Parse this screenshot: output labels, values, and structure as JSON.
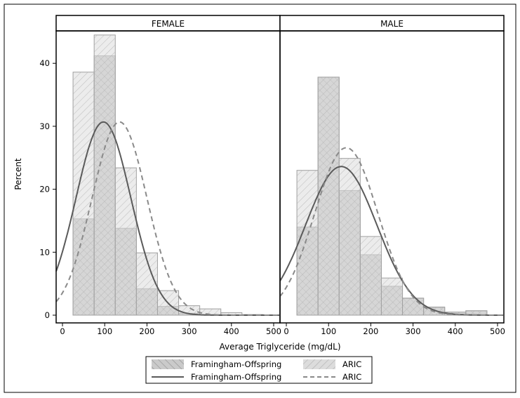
{
  "chart_data": {
    "type": "bar",
    "subtype": "histogram-with-normal-density",
    "xlabel": "Average Triglyceride (mg/dL)",
    "ylabel": "Percent",
    "xlim": [
      -15,
      515
    ],
    "ylim": [
      0,
      46
    ],
    "xticks": [
      0,
      100,
      200,
      300,
      400,
      500
    ],
    "yticks": [
      0,
      10,
      20,
      30,
      40
    ],
    "bin_width": 50,
    "bin_midpoints": [
      50,
      100,
      150,
      200,
      250,
      300,
      350,
      400,
      450
    ],
    "legend": {
      "placement": "bottom",
      "entries": [
        {
          "label": "Framingham-Offspring",
          "kind": "histogram"
        },
        {
          "label": "ARIC",
          "kind": "histogram"
        },
        {
          "label": "Framingham-Offspring",
          "kind": "solid-line"
        },
        {
          "label": "ARIC",
          "kind": "dashed-line"
        }
      ]
    },
    "panels": [
      {
        "title": "FEMALE",
        "series": [
          {
            "name": "Framingham-Offspring",
            "values": [
              15.3,
              41.2,
              13.8,
              4.2,
              1.4,
              0.3,
              0.1,
              0.0,
              0.0
            ],
            "normal": {
              "mean": 97,
              "sd": 65
            }
          },
          {
            "name": "ARIC",
            "values": [
              38.6,
              44.5,
              23.4,
              9.9,
              3.9,
              1.5,
              1.0,
              0.4,
              0.1
            ],
            "normal": {
              "mean": 135,
              "sd": 65
            }
          }
        ]
      },
      {
        "title": "MALE",
        "series": [
          {
            "name": "Framingham-Offspring",
            "values": [
              14.0,
              37.8,
              19.8,
              9.6,
              4.6,
              2.7,
              1.2,
              0.5,
              0.7
            ],
            "normal": {
              "mean": 130,
              "sd": 84.5
            }
          },
          {
            "name": "ARIC",
            "values": [
              23.0,
              37.8,
              24.9,
              12.5,
              5.9,
              2.7,
              1.3,
              0.5,
              0.7
            ],
            "normal": {
              "mean": 142,
              "sd": 75
            }
          }
        ]
      }
    ],
    "colors": {
      "framingham": "#bdbdbd",
      "aric": "#dcdcdc",
      "line": "#5a5a5a",
      "dashed": "#8a8a8a"
    }
  }
}
